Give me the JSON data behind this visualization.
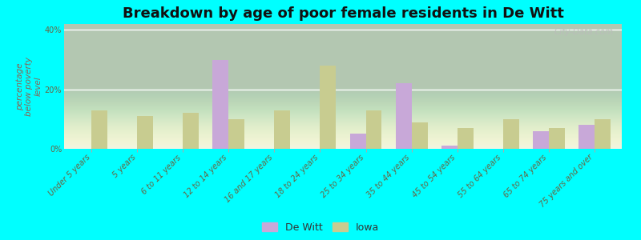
{
  "title": "Breakdown by age of poor female residents in De Witt",
  "ylabel": "percentage\nbelow poverty\nlevel",
  "categories": [
    "Under 5 years",
    "5 years",
    "6 to 11 years",
    "12 to 14 years",
    "16 and 17 years",
    "18 to 24 years",
    "25 to 34 years",
    "35 to 44 years",
    "45 to 54 years",
    "55 to 64 years",
    "65 to 74 years",
    "75 years and over"
  ],
  "dewitt_values": [
    0,
    0,
    0,
    30,
    0,
    0,
    5,
    22,
    1,
    0,
    6,
    8
  ],
  "iowa_values": [
    13,
    11,
    12,
    10,
    13,
    28,
    13,
    9,
    7,
    10,
    7,
    10
  ],
  "dewitt_color": "#c8a8d8",
  "iowa_color": "#c8cc90",
  "background_color": "#00ffff",
  "plot_bg_color": "#eef2de",
  "ylim": [
    0,
    42
  ],
  "yticks": [
    0,
    20,
    40
  ],
  "ytick_labels": [
    "0%",
    "20%",
    "40%"
  ],
  "bar_width": 0.35,
  "title_fontsize": 13,
  "axis_label_fontsize": 7.5,
  "tick_fontsize": 7,
  "legend_fontsize": 9,
  "watermark": "City-Data.com"
}
